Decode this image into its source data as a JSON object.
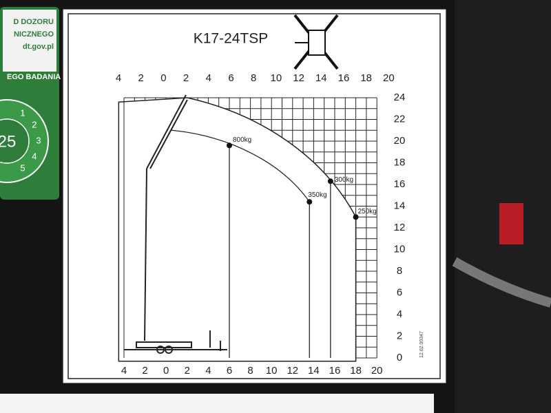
{
  "title": "K17-24TSP",
  "top_axis": [
    "4",
    "2",
    "0",
    "2",
    "4",
    "6",
    "8",
    "10",
    "12",
    "14",
    "16",
    "18",
    "20"
  ],
  "bottom_axis": [
    "4",
    "2",
    "0",
    "2",
    "4",
    "6",
    "8",
    "10",
    "12",
    "14",
    "16",
    "18",
    "20"
  ],
  "right_axis": [
    24,
    22,
    20,
    18,
    16,
    14,
    12,
    10,
    8,
    6,
    4,
    2,
    0
  ],
  "loads": [
    "800kg",
    "350kg",
    "300kg",
    "250kg"
  ],
  "sticker": {
    "lines": [
      "D DOZORU",
      "NICZNEGO",
      "dt.gov.pl",
      "EGO BADANIA"
    ],
    "year": "25",
    "digits": [
      "1",
      "2",
      "3",
      "4",
      "5"
    ]
  },
  "code": "12.02.00347"
}
